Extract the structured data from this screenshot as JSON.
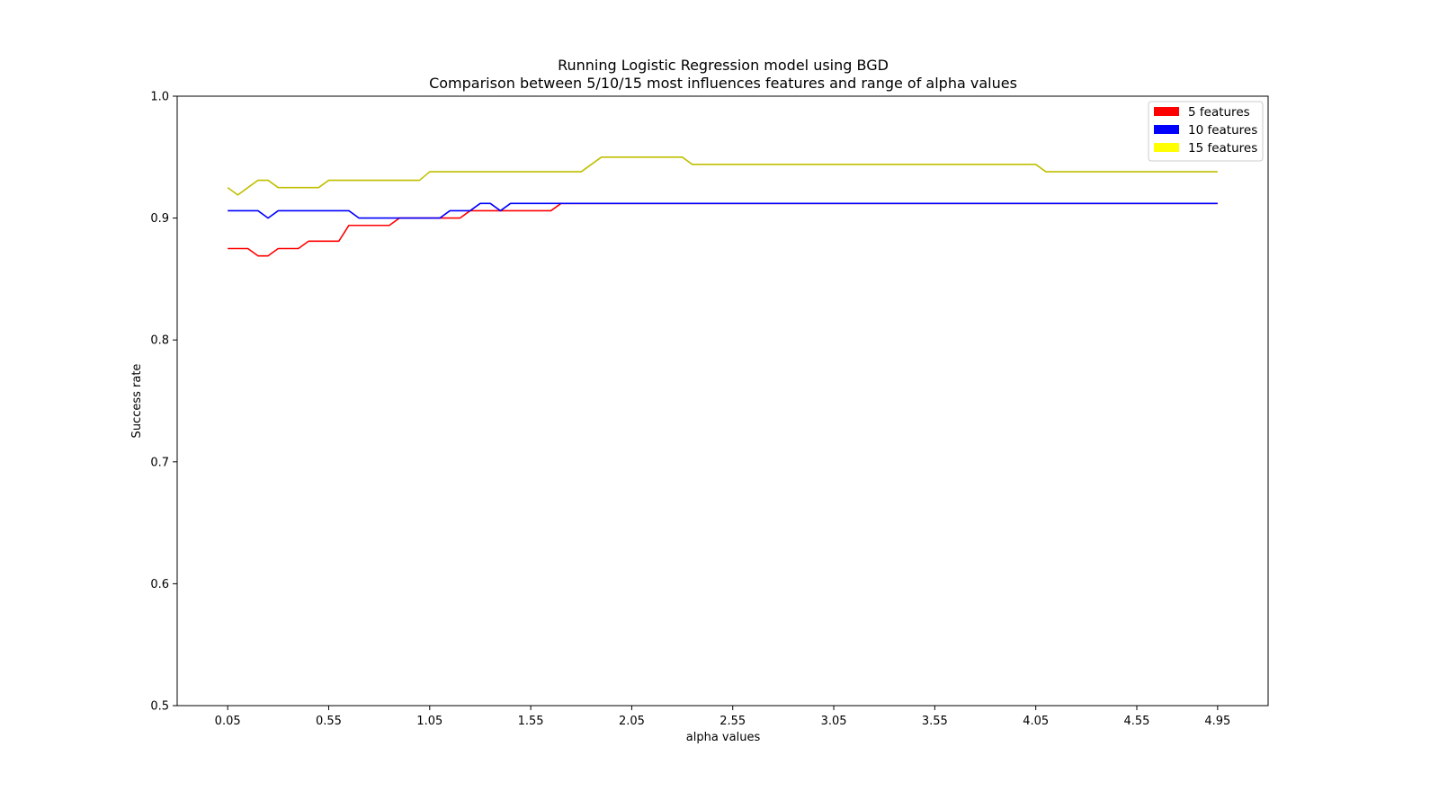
{
  "chart_data": {
    "type": "line",
    "title": [
      "Running Logistic Regression model using BGD",
      "Comparison between 5/10/15 most influences features and range of alpha values"
    ],
    "xlabel": "alpha values",
    "ylabel": "Success rate",
    "xlim": [
      -0.2,
      5.2
    ],
    "ylim": [
      0.5,
      1.0
    ],
    "xticks": [
      "0.05",
      "0.55",
      "1.05",
      "1.55",
      "2.05",
      "2.55",
      "3.05",
      "3.55",
      "4.05",
      "4.55",
      "4.95"
    ],
    "yticks": [
      "0.5",
      "0.6",
      "0.7",
      "0.8",
      "0.9",
      "1.0"
    ],
    "grid": false,
    "legend_position": "top-right",
    "x": [
      0.05,
      0.1,
      0.15,
      0.2,
      0.25,
      0.3,
      0.35,
      0.4,
      0.45,
      0.5,
      0.55,
      0.6,
      0.65,
      0.7,
      0.75,
      0.8,
      0.85,
      0.9,
      0.95,
      1.0,
      1.05,
      1.1,
      1.15,
      1.2,
      1.25,
      1.3,
      1.35,
      1.4,
      1.45,
      1.5,
      1.55,
      1.6,
      1.65,
      1.7,
      1.75,
      1.8,
      1.85,
      1.9,
      1.95,
      2.0,
      2.05,
      2.1,
      2.15,
      2.2,
      2.25,
      2.3,
      2.35,
      2.4,
      2.45,
      2.5,
      2.55,
      2.6,
      2.65,
      2.7,
      2.75,
      2.8,
      2.85,
      2.9,
      2.95,
      3.0,
      3.05,
      3.1,
      3.15,
      3.2,
      3.25,
      3.3,
      3.35,
      3.4,
      3.45,
      3.5,
      3.55,
      3.6,
      3.65,
      3.7,
      3.75,
      3.8,
      3.85,
      3.9,
      3.95,
      4.0,
      4.05,
      4.1,
      4.15,
      4.2,
      4.25,
      4.3,
      4.35,
      4.4,
      4.45,
      4.5,
      4.55,
      4.6,
      4.65,
      4.7,
      4.75,
      4.8,
      4.85,
      4.9,
      4.95
    ],
    "series": [
      {
        "name": "5 features",
        "color": "#ff0000",
        "values": [
          0.875,
          0.875,
          0.875,
          0.869,
          0.869,
          0.875,
          0.875,
          0.875,
          0.881,
          0.881,
          0.881,
          0.881,
          0.894,
          0.894,
          0.894,
          0.894,
          0.894,
          0.9,
          0.9,
          0.9,
          0.9,
          0.9,
          0.9,
          0.9,
          0.906,
          0.906,
          0.906,
          0.906,
          0.906,
          0.906,
          0.906,
          0.906,
          0.906,
          0.912,
          0.912,
          0.912,
          0.912,
          0.912,
          0.912,
          0.912,
          0.912,
          0.912,
          0.912,
          0.912,
          0.912,
          0.912,
          0.912,
          0.912,
          0.912,
          0.912,
          0.912,
          0.912,
          0.912,
          0.912,
          0.912,
          0.912,
          0.912,
          0.912,
          0.912,
          0.912,
          0.912,
          0.912,
          0.912,
          0.912,
          0.912,
          0.912,
          0.912,
          0.912,
          0.912,
          0.912,
          0.912,
          0.912,
          0.912,
          0.912,
          0.912,
          0.912,
          0.912,
          0.912,
          0.912,
          0.912,
          0.912,
          0.912,
          0.912,
          0.912,
          0.912,
          0.912,
          0.912,
          0.912,
          0.912,
          0.912,
          0.912,
          0.912,
          0.912,
          0.912,
          0.912,
          0.912,
          0.912,
          0.912,
          0.912
        ]
      },
      {
        "name": "10 features",
        "color": "#0000ff",
        "values": [
          0.906,
          0.906,
          0.906,
          0.906,
          0.9,
          0.906,
          0.906,
          0.906,
          0.906,
          0.906,
          0.906,
          0.906,
          0.906,
          0.9,
          0.9,
          0.9,
          0.9,
          0.9,
          0.9,
          0.9,
          0.9,
          0.9,
          0.906,
          0.906,
          0.906,
          0.912,
          0.912,
          0.906,
          0.912,
          0.912,
          0.912,
          0.912,
          0.912,
          0.912,
          0.912,
          0.912,
          0.912,
          0.912,
          0.912,
          0.912,
          0.912,
          0.912,
          0.912,
          0.912,
          0.912,
          0.912,
          0.912,
          0.912,
          0.912,
          0.912,
          0.912,
          0.912,
          0.912,
          0.912,
          0.912,
          0.912,
          0.912,
          0.912,
          0.912,
          0.912,
          0.912,
          0.912,
          0.912,
          0.912,
          0.912,
          0.912,
          0.912,
          0.912,
          0.912,
          0.912,
          0.912,
          0.912,
          0.912,
          0.912,
          0.912,
          0.912,
          0.912,
          0.912,
          0.912,
          0.912,
          0.912,
          0.912,
          0.912,
          0.912,
          0.912,
          0.912,
          0.912,
          0.912,
          0.912,
          0.912,
          0.912,
          0.912,
          0.912,
          0.912,
          0.912,
          0.912,
          0.912,
          0.912,
          0.912
        ]
      },
      {
        "name": "15 features",
        "color": "#bfbf00",
        "legend_color": "#ffff00",
        "values": [
          0.925,
          0.919,
          0.925,
          0.931,
          0.931,
          0.925,
          0.925,
          0.925,
          0.925,
          0.925,
          0.931,
          0.931,
          0.931,
          0.931,
          0.931,
          0.931,
          0.931,
          0.931,
          0.931,
          0.931,
          0.938,
          0.938,
          0.938,
          0.938,
          0.938,
          0.938,
          0.938,
          0.938,
          0.938,
          0.938,
          0.938,
          0.938,
          0.938,
          0.938,
          0.938,
          0.938,
          0.944,
          0.95,
          0.95,
          0.95,
          0.95,
          0.95,
          0.95,
          0.95,
          0.95,
          0.95,
          0.944,
          0.944,
          0.944,
          0.944,
          0.944,
          0.944,
          0.944,
          0.944,
          0.944,
          0.944,
          0.944,
          0.944,
          0.944,
          0.944,
          0.944,
          0.944,
          0.944,
          0.944,
          0.944,
          0.944,
          0.944,
          0.944,
          0.944,
          0.944,
          0.944,
          0.944,
          0.944,
          0.944,
          0.944,
          0.944,
          0.944,
          0.944,
          0.944,
          0.944,
          0.944,
          0.938,
          0.938,
          0.938,
          0.938,
          0.938,
          0.938,
          0.938,
          0.938,
          0.938,
          0.938,
          0.938,
          0.938,
          0.938,
          0.938,
          0.938,
          0.938,
          0.938,
          0.938
        ]
      }
    ]
  }
}
